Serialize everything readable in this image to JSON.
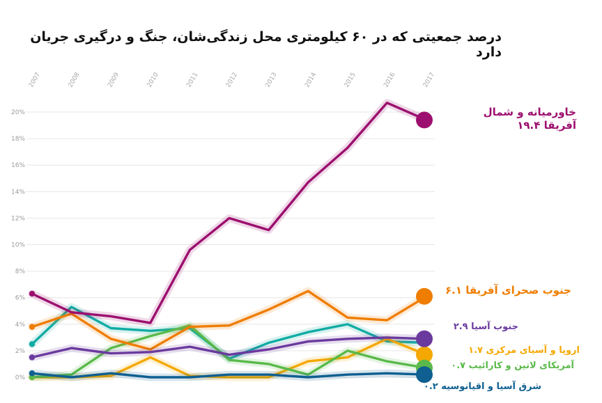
{
  "chart_data": {
    "type": "line",
    "title": "درصد جمعیتی که در ۶۰ کیلومتری محل زندگی‌شان، جنگ و درگیری جریان دارد",
    "x": [
      "2007",
      "2008",
      "2009",
      "2010",
      "2011",
      "2012",
      "2013",
      "2014",
      "2015",
      "2016",
      "2017"
    ],
    "y_ticks": [
      "0%",
      "2%",
      "4%",
      "6%",
      "8%",
      "10%",
      "12%",
      "14%",
      "16%",
      "18%",
      "20%"
    ],
    "ylim": [
      0,
      20
    ],
    "grid": true,
    "series": [
      {
        "name": "خاورمیانه و شمال آفریقا",
        "end_label_lines": [
          "خاورمیانه و شمال",
          "آفریقا ۱۹.۴"
        ],
        "color": "#9c0f6e",
        "values": [
          6.3,
          4.9,
          4.6,
          4.1,
          9.6,
          12.0,
          11.1,
          14.7,
          17.3,
          20.7,
          19.4
        ]
      },
      {
        "name": "جنوب صحرای آفریقا",
        "end_label_lines": [
          "جنوب صحرای آفریقا ۶.۱"
        ],
        "color": "#ef7d00",
        "values": [
          3.8,
          4.8,
          2.9,
          2.1,
          3.8,
          3.9,
          5.1,
          6.5,
          4.5,
          4.3,
          6.1
        ]
      },
      {
        "name": "جنوب آسیا",
        "end_label_lines": [
          "جنوب آسیا ۲.۹"
        ],
        "color": "#6b3a9e",
        "values": [
          1.5,
          2.2,
          1.8,
          1.9,
          2.3,
          1.7,
          2.1,
          2.7,
          2.9,
          3.0,
          2.9
        ]
      },
      {
        "name": "اروپا و آسیای مرکزی",
        "end_label_lines": [
          "اروپا و آسیای مرکزی ۱.۷"
        ],
        "color": "#f5a800",
        "values": [
          0.0,
          0.0,
          0.1,
          1.5,
          0.1,
          0.0,
          0.0,
          1.2,
          1.5,
          2.9,
          1.7
        ]
      },
      {
        "name": "آمریکای لاتین و کارائیب",
        "end_label_lines": [
          "آمریکای لاتین و کارائیب ۰.۷"
        ],
        "color": "#5ab94a",
        "values": [
          0.0,
          0.2,
          2.2,
          3.1,
          3.9,
          1.3,
          1.0,
          0.2,
          2.0,
          1.2,
          0.7
        ]
      },
      {
        "name": "شرق آسیا و اقیانوسیه",
        "end_label_lines": [
          "شرق آسیا و اقیانوسیه ۰.۲"
        ],
        "color": "#0f5f91",
        "values": [
          0.3,
          0.0,
          0.3,
          0.0,
          0.0,
          0.2,
          0.2,
          0.0,
          0.2,
          0.3,
          0.2
        ]
      },
      {
        "name": "",
        "color": "#12aca4",
        "values": [
          2.5,
          5.3,
          3.7,
          3.5,
          3.7,
          1.4,
          2.6,
          3.4,
          4.0,
          2.7,
          2.6
        ]
      }
    ]
  }
}
